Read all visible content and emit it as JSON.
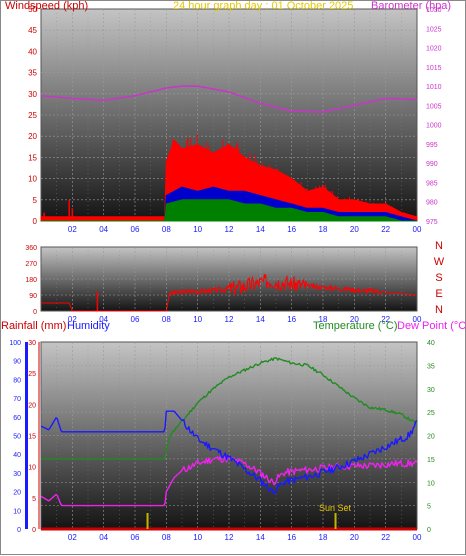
{
  "header": {
    "windspeed_title": "Windspeed (kph)",
    "graph_date": "24 hour graph day : 01 October 2025",
    "barometer_title": "Barometer (hpa)",
    "rainfall_title": "Rainfall (mm)",
    "humidity_title": "Humidity",
    "temperature_title": "Temperature (°C)",
    "dewpoint_title": "Dew Point (°C)",
    "sun_set_label": "Sun Set"
  },
  "colors": {
    "wind_speed": "#ff0000",
    "wind_gust_mid": "#0000cc",
    "wind_avg": "#008000",
    "barometer": "#cc33cc",
    "direction": "#ff0000",
    "rainfall": "#cc0000",
    "humidity": "#1a1aff",
    "temperature": "#228b22",
    "dewpoint": "#ee22ee",
    "sun": "#c8b400"
  },
  "chart_data": [
    {
      "type": "line",
      "panel": "wind",
      "x_ticks": [
        "02",
        "04",
        "06",
        "08",
        "10",
        "12",
        "14",
        "16",
        "18",
        "20",
        "22",
        "00"
      ],
      "left_axis": {
        "label": "Windspeed (kph)",
        "ticks": [
          0,
          5,
          10,
          15,
          20,
          25,
          30,
          35,
          40,
          45,
          50
        ],
        "range": [
          0,
          50
        ]
      },
      "right_axis": {
        "label": "Barometer (hpa)",
        "ticks": [
          975,
          980,
          985,
          990,
          995,
          1000,
          1005,
          1010,
          1015,
          1020,
          1025,
          1030
        ],
        "range": [
          975,
          1030
        ]
      },
      "series": [
        {
          "name": "Barometer",
          "axis": "right",
          "x": [
            0,
            2,
            4,
            6,
            8,
            9,
            10,
            12,
            14,
            16,
            18,
            20,
            22,
            24
          ],
          "y": [
            1007.5,
            1006.8,
            1006.3,
            1007.5,
            1009.5,
            1010.0,
            1010.0,
            1008.5,
            1005.5,
            1003.5,
            1003.3,
            1005.0,
            1006.8,
            1006.5
          ]
        },
        {
          "name": "Wind Gust",
          "axis": "left",
          "x": [
            0,
            7.9,
            8.0,
            8.5,
            9.0,
            10.0,
            11.0,
            12.0,
            13.0,
            14.0,
            15.0,
            16.0,
            17.0,
            18.0,
            19.0,
            20.0,
            21.0,
            22.0,
            23.0,
            24.0
          ],
          "y": [
            1,
            1,
            14,
            19,
            17,
            18,
            16,
            18,
            15,
            13,
            12,
            10,
            7,
            8,
            5,
            5,
            4,
            4,
            2,
            1
          ]
        },
        {
          "name": "Wind Speed",
          "axis": "left",
          "x": [
            0,
            7.9,
            8.0,
            9.0,
            10.0,
            11.0,
            12.0,
            13.0,
            14.0,
            15.0,
            16.0,
            17.0,
            18.0,
            19.0,
            20.0,
            21.0,
            22.0,
            23.0,
            24.0
          ],
          "y": [
            0,
            0,
            6,
            8,
            7,
            8,
            7,
            7,
            6,
            5,
            4,
            3,
            3,
            2,
            2,
            2,
            2,
            1,
            0
          ]
        },
        {
          "name": "Wind Average",
          "axis": "left",
          "x": [
            0,
            7.9,
            8.0,
            9.0,
            10.0,
            11.0,
            12.0,
            13.0,
            14.0,
            15.0,
            16.0,
            17.0,
            18.0,
            19.0,
            20.0,
            21.0,
            22.0,
            23.0,
            24.0
          ],
          "y": [
            0,
            0,
            4,
            5,
            5,
            5,
            5,
            4,
            4,
            3,
            3,
            2,
            2,
            1,
            1,
            1,
            1,
            0,
            0
          ]
        }
      ]
    },
    {
      "type": "line",
      "panel": "direction",
      "x_ticks": [
        "02",
        "04",
        "06",
        "08",
        "10",
        "12",
        "14",
        "16",
        "18",
        "20",
        "22",
        "00"
      ],
      "left_axis": {
        "ticks": [
          0,
          90,
          180,
          270,
          360
        ],
        "range": [
          0,
          360
        ]
      },
      "right_axis": {
        "ticks": [
          "N",
          "W",
          "S",
          "E",
          "N"
        ]
      },
      "series": [
        {
          "name": "Wind Direction",
          "x": [
            0,
            1.8,
            2.0,
            8.0,
            8.2,
            9.5,
            11.0,
            12.5,
            13.5,
            14.5,
            15.5,
            17.0,
            18.5,
            20.0,
            22.0,
            24.0
          ],
          "y": [
            45,
            45,
            0,
            0,
            100,
            110,
            115,
            130,
            150,
            170,
            160,
            140,
            130,
            120,
            105,
            90
          ]
        }
      ]
    },
    {
      "type": "line",
      "panel": "climate",
      "x_ticks": [
        "02",
        "04",
        "06",
        "08",
        "10",
        "12",
        "14",
        "16",
        "18",
        "20",
        "22",
        "00"
      ],
      "left_axis_humidity": {
        "label": "Humidity",
        "ticks": [
          0,
          10,
          20,
          30,
          40,
          50,
          60,
          70,
          80,
          90,
          100
        ],
        "range": [
          0,
          100
        ]
      },
      "left_axis_rain": {
        "label": "Rainfall (mm)",
        "ticks": [
          0,
          5,
          10,
          15,
          20,
          25,
          30
        ],
        "range": [
          0,
          30
        ]
      },
      "right_axis": {
        "label": "Temperature (°C)",
        "ticks": [
          0,
          5,
          10,
          15,
          20,
          25,
          30,
          35,
          40
        ],
        "range": [
          0,
          40
        ]
      },
      "annotation": {
        "text": "Sun Set",
        "x": 18.8
      },
      "sun_markers_x": [
        6.8,
        18.8
      ],
      "series": [
        {
          "name": "Humidity",
          "axis": "humidity",
          "x": [
            0,
            0.5,
            1.0,
            1.3,
            2.0,
            4.0,
            6.0,
            7.9,
            8.0,
            8.5,
            9.0,
            10.0,
            12.0,
            13.0,
            14.0,
            14.8,
            15.5,
            16.5,
            17.5,
            19.0,
            20.5,
            22.0,
            23.5,
            24.0
          ],
          "y": [
            55,
            53,
            60,
            52,
            52,
            52,
            52,
            52,
            63,
            63,
            58,
            48,
            38,
            32,
            26,
            20,
            25,
            27,
            29,
            33,
            38,
            44,
            50,
            57
          ]
        },
        {
          "name": "Temperature",
          "axis": "right",
          "x": [
            0,
            2.0,
            4.0,
            6.0,
            7.9,
            8.2,
            9.0,
            10.0,
            11.0,
            12.0,
            13.0,
            14.0,
            15.0,
            16.0,
            17.0,
            18.0,
            19.0,
            20.0,
            21.0,
            22.0,
            23.0,
            24.0
          ],
          "y": [
            15,
            15,
            15,
            15,
            15,
            20,
            23,
            27,
            30,
            32.5,
            34,
            35.5,
            36.5,
            35.5,
            35,
            33,
            30.5,
            28,
            26,
            25.5,
            24.5,
            22.5
          ]
        },
        {
          "name": "Dew Point",
          "axis": "right",
          "x": [
            0,
            0.5,
            1.0,
            1.3,
            2.0,
            4.0,
            6.0,
            7.9,
            8.0,
            8.5,
            9.0,
            10.0,
            11.0,
            12.0,
            13.0,
            14.0,
            14.8,
            15.5,
            16.5,
            18.0,
            19.5,
            21.0,
            22.5,
            24.0
          ],
          "y": [
            7,
            6,
            7.5,
            5,
            5,
            5,
            5,
            5,
            8,
            11,
            12.5,
            14,
            15,
            15,
            14,
            12,
            10,
            12,
            12.5,
            13,
            13.5,
            13.5,
            14,
            14
          ]
        },
        {
          "name": "Rainfall",
          "axis": "rain",
          "x": [
            0,
            24
          ],
          "y": [
            0,
            0
          ]
        }
      ]
    }
  ]
}
